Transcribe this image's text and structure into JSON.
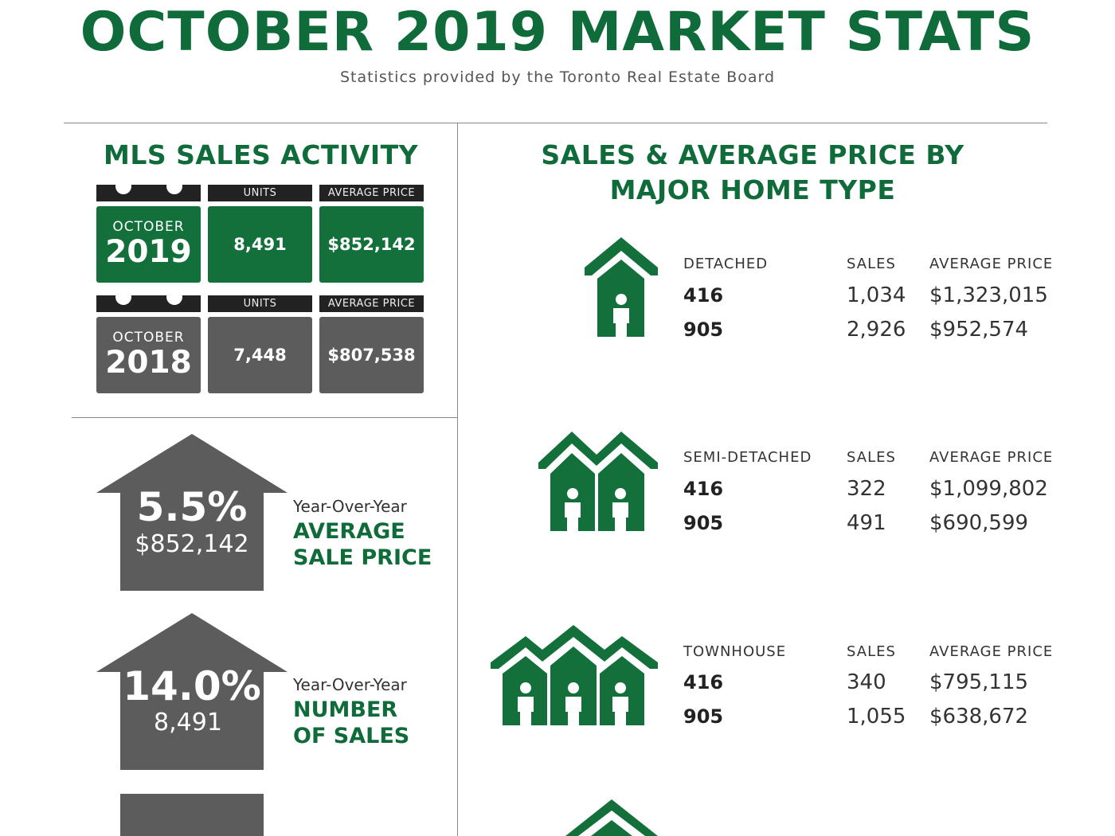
{
  "header": {
    "title": "OCTOBER 2019 MARKET STATS",
    "subtitle": "Statistics provided by the Toronto Real Estate Board"
  },
  "mls": {
    "title": "MLS SALES ACTIVITY",
    "rows": [
      {
        "month": "OCTOBER",
        "year": "2019",
        "units_tab": "UNITS",
        "price_tab": "AVERAGE PRICE",
        "units": "8,491",
        "price": "$852,142"
      },
      {
        "month": "OCTOBER",
        "year": "2018",
        "units_tab": "UNITS",
        "price_tab": "AVERAGE PRICE",
        "units": "7,448",
        "price": "$807,538"
      }
    ]
  },
  "yoy": [
    {
      "pct": "5.5%",
      "value": "$852,142",
      "caption": "Year-Over-Year",
      "label1": "AVERAGE",
      "label2": "SALE PRICE"
    },
    {
      "pct": "14.0%",
      "value": "8,491",
      "caption": "Year-Over-Year",
      "label1": "NUMBER",
      "label2": "OF SALES"
    }
  ],
  "home_types": {
    "title_line1": "SALES & AVERAGE PRICE BY",
    "title_line2": "MAJOR HOME TYPE",
    "types": [
      {
        "name": "DETACHED",
        "sales_hdr": "SALES",
        "price_hdr": "AVERAGE PRICE",
        "rows": [
          {
            "region": "416",
            "sales": "1,034",
            "price": "$1,323,015"
          },
          {
            "region": "905",
            "sales": "2,926",
            "price": "$952,574"
          }
        ]
      },
      {
        "name": "SEMI-DETACHED",
        "sales_hdr": "SALES",
        "price_hdr": "AVERAGE PRICE",
        "rows": [
          {
            "region": "416",
            "sales": "322",
            "price": "$1,099,802"
          },
          {
            "region": "905",
            "sales": "491",
            "price": "$690,599"
          }
        ]
      },
      {
        "name": "TOWNHOUSE",
        "sales_hdr": "SALES",
        "price_hdr": "AVERAGE PRICE",
        "rows": [
          {
            "region": "416",
            "sales": "340",
            "price": "$795,115"
          },
          {
            "region": "905",
            "sales": "1,055",
            "price": "$638,672"
          }
        ]
      }
    ]
  },
  "colors": {
    "brand_green": "#0f6b3a",
    "dark_gray": "#5d5c5d",
    "tab_black": "#222222"
  },
  "icons": [
    "detached-house-icon",
    "semi-detached-house-icon",
    "townhouse-icon",
    "up-arrow-icon"
  ]
}
